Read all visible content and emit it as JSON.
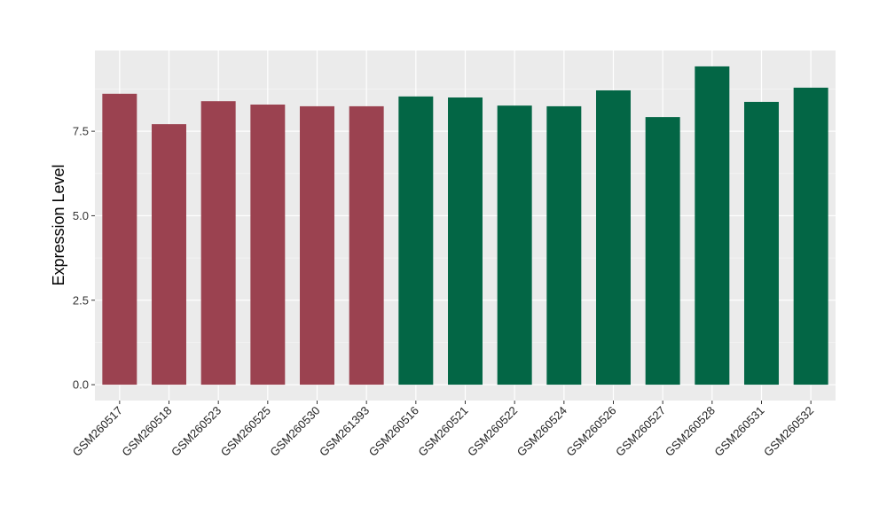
{
  "chart_data": {
    "type": "bar",
    "title": "",
    "xlabel": "",
    "ylabel": "Expression Level",
    "ylim": [
      -0.47,
      9.89
    ],
    "yticks": [
      0.0,
      2.5,
      5.0,
      7.5
    ],
    "ytick_labels": [
      "0.0",
      "2.5",
      "5.0",
      "7.5"
    ],
    "grid": true,
    "categories": [
      "GSM260517",
      "GSM260518",
      "GSM260523",
      "GSM260525",
      "GSM260530",
      "GSM261393",
      "GSM260516",
      "GSM260521",
      "GSM260522",
      "GSM260524",
      "GSM260526",
      "GSM260527",
      "GSM260528",
      "GSM260531",
      "GSM260532"
    ],
    "values": [
      8.61,
      7.71,
      8.39,
      8.29,
      8.24,
      8.24,
      8.53,
      8.5,
      8.26,
      8.24,
      8.71,
      7.92,
      9.42,
      8.37,
      8.79
    ],
    "groups": [
      0,
      0,
      0,
      0,
      0,
      0,
      1,
      1,
      1,
      1,
      1,
      1,
      1,
      1,
      1
    ],
    "group_colors": [
      "#9b4250",
      "#036645"
    ]
  }
}
